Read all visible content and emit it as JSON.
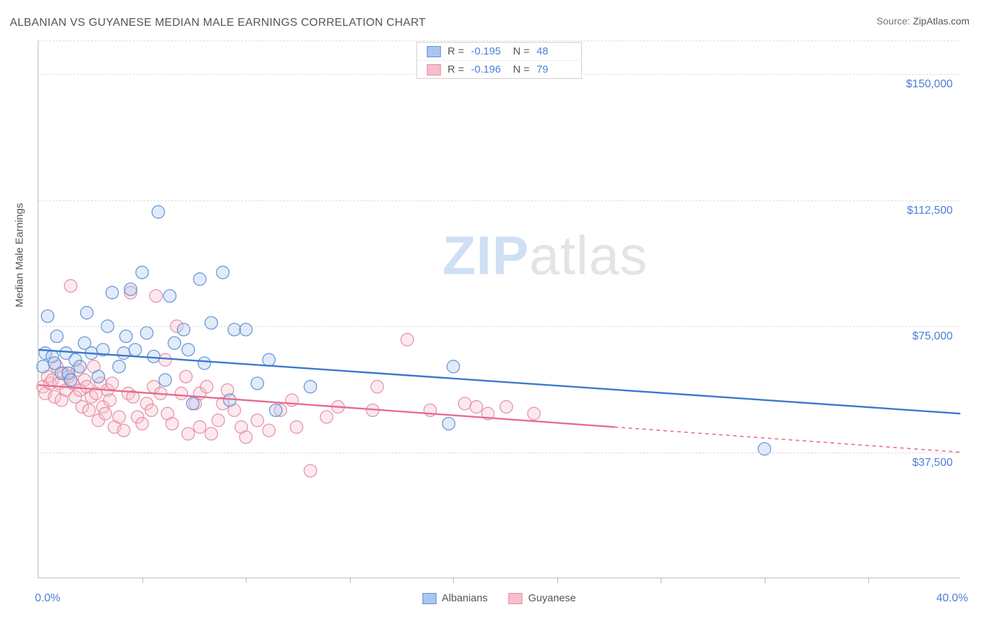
{
  "title": "ALBANIAN VS GUYANESE MEDIAN MALE EARNINGS CORRELATION CHART",
  "source": {
    "label": "Source:",
    "value": "ZipAtlas.com"
  },
  "watermark": {
    "part1": "ZIP",
    "part2": "atlas"
  },
  "y_axis": {
    "label": "Median Male Earnings"
  },
  "chart": {
    "type": "scatter",
    "xlim": [
      0,
      40
    ],
    "ylim": [
      0,
      160000
    ],
    "x_ticks_major": [
      0,
      40
    ],
    "x_ticks_minor": [
      4.5,
      9,
      13.5,
      18,
      22.5,
      27,
      31.5,
      36
    ],
    "x_tick_labels": {
      "0": "0.0%",
      "40": "40.0%"
    },
    "y_gridlines": [
      37500,
      75000,
      112500,
      150000,
      160000
    ],
    "y_tick_labels": {
      "37500": "$37,500",
      "75000": "$75,000",
      "112500": "$112,500",
      "150000": "$150,000"
    },
    "background_color": "#ffffff",
    "grid_color": "#dcdcdc",
    "axis_color": "#bbbbbb",
    "marker_radius": 9,
    "marker_fill_opacity": 0.35,
    "marker_stroke_opacity": 0.9,
    "trend_line_width": 2.4,
    "series": [
      {
        "name": "Albanians",
        "color_fill": "#a9c7ee",
        "color_stroke": "#5a8fd6",
        "trend_color": "#3b78cc",
        "r": "-0.195",
        "n": "48",
        "trend": {
          "x1": 0,
          "y1": 68000,
          "x2": 40,
          "y2": 49000,
          "solid_until": 40
        },
        "points": [
          [
            0.2,
            63000
          ],
          [
            0.3,
            67000
          ],
          [
            0.4,
            78000
          ],
          [
            0.6,
            66000
          ],
          [
            0.7,
            64000
          ],
          [
            0.8,
            72000
          ],
          [
            1.0,
            61000
          ],
          [
            1.2,
            67000
          ],
          [
            1.3,
            61000
          ],
          [
            1.4,
            59000
          ],
          [
            1.6,
            65000
          ],
          [
            1.8,
            63000
          ],
          [
            2.0,
            70000
          ],
          [
            2.1,
            79000
          ],
          [
            2.3,
            67000
          ],
          [
            2.6,
            60000
          ],
          [
            2.8,
            68000
          ],
          [
            3.0,
            75000
          ],
          [
            3.2,
            85000
          ],
          [
            3.5,
            63000
          ],
          [
            3.7,
            67000
          ],
          [
            3.8,
            72000
          ],
          [
            4.0,
            86000
          ],
          [
            4.2,
            68000
          ],
          [
            4.5,
            91000
          ],
          [
            4.7,
            73000
          ],
          [
            5.0,
            66000
          ],
          [
            5.2,
            109000
          ],
          [
            5.5,
            59000
          ],
          [
            5.7,
            84000
          ],
          [
            5.9,
            70000
          ],
          [
            6.3,
            74000
          ],
          [
            6.5,
            68000
          ],
          [
            6.7,
            52000
          ],
          [
            7.0,
            89000
          ],
          [
            7.2,
            64000
          ],
          [
            7.5,
            76000
          ],
          [
            8.0,
            91000
          ],
          [
            8.3,
            53000
          ],
          [
            8.5,
            74000
          ],
          [
            9.0,
            74000
          ],
          [
            9.5,
            58000
          ],
          [
            10.0,
            65000
          ],
          [
            10.3,
            50000
          ],
          [
            11.8,
            57000
          ],
          [
            17.8,
            46000
          ],
          [
            18.0,
            63000
          ],
          [
            31.5,
            38500
          ]
        ]
      },
      {
        "name": "Guyanese",
        "color_fill": "#f5bfcb",
        "color_stroke": "#e48aa3",
        "trend_color": "#e76b8f",
        "r": "-0.196",
        "n": "79",
        "trend": {
          "x1": 0,
          "y1": 57500,
          "x2": 40,
          "y2": 37500,
          "solid_until": 25
        },
        "points": [
          [
            0.2,
            57000
          ],
          [
            0.3,
            55000
          ],
          [
            0.4,
            60000
          ],
          [
            0.5,
            58000
          ],
          [
            0.6,
            59000
          ],
          [
            0.7,
            54000
          ],
          [
            0.8,
            63000
          ],
          [
            0.9,
            58000
          ],
          [
            1.0,
            53000
          ],
          [
            1.1,
            61000
          ],
          [
            1.2,
            56000
          ],
          [
            1.3,
            60000
          ],
          [
            1.4,
            87000
          ],
          [
            1.5,
            58000
          ],
          [
            1.6,
            54000
          ],
          [
            1.7,
            62000
          ],
          [
            1.8,
            56000
          ],
          [
            1.9,
            51000
          ],
          [
            2.0,
            59000
          ],
          [
            2.1,
            57000
          ],
          [
            2.2,
            50000
          ],
          [
            2.3,
            54000
          ],
          [
            2.4,
            63000
          ],
          [
            2.5,
            55000
          ],
          [
            2.6,
            47000
          ],
          [
            2.7,
            58000
          ],
          [
            2.8,
            51000
          ],
          [
            2.9,
            49000
          ],
          [
            3.0,
            56000
          ],
          [
            3.1,
            53000
          ],
          [
            3.2,
            58000
          ],
          [
            3.3,
            45000
          ],
          [
            3.5,
            48000
          ],
          [
            3.7,
            44000
          ],
          [
            3.9,
            55000
          ],
          [
            4.0,
            85000
          ],
          [
            4.1,
            54000
          ],
          [
            4.3,
            48000
          ],
          [
            4.5,
            46000
          ],
          [
            4.7,
            52000
          ],
          [
            4.9,
            50000
          ],
          [
            5.0,
            57000
          ],
          [
            5.1,
            84000
          ],
          [
            5.3,
            55000
          ],
          [
            5.5,
            65000
          ],
          [
            5.6,
            49000
          ],
          [
            5.8,
            46000
          ],
          [
            6.0,
            75000
          ],
          [
            6.2,
            55000
          ],
          [
            6.4,
            60000
          ],
          [
            6.5,
            43000
          ],
          [
            6.8,
            52000
          ],
          [
            7.0,
            45000
          ],
          [
            7.0,
            55000
          ],
          [
            7.3,
            57000
          ],
          [
            7.5,
            43000
          ],
          [
            7.8,
            47000
          ],
          [
            8.0,
            52000
          ],
          [
            8.2,
            56000
          ],
          [
            8.5,
            50000
          ],
          [
            8.8,
            45000
          ],
          [
            9.0,
            42000
          ],
          [
            9.5,
            47000
          ],
          [
            10.0,
            44000
          ],
          [
            10.5,
            50000
          ],
          [
            11.0,
            53000
          ],
          [
            11.2,
            45000
          ],
          [
            11.8,
            32000
          ],
          [
            12.5,
            48000
          ],
          [
            13.0,
            51000
          ],
          [
            14.5,
            50000
          ],
          [
            14.7,
            57000
          ],
          [
            16.0,
            71000
          ],
          [
            17.0,
            50000
          ],
          [
            18.5,
            52000
          ],
          [
            19.0,
            51000
          ],
          [
            19.5,
            49000
          ],
          [
            20.3,
            51000
          ],
          [
            21.5,
            49000
          ]
        ]
      }
    ]
  },
  "legend_top_labels": {
    "r": "R =",
    "n": "N ="
  },
  "legend_bottom": [
    {
      "label": "Albanians",
      "fill": "#a9c7ee",
      "stroke": "#5a8fd6"
    },
    {
      "label": "Guyanese",
      "fill": "#f5bfcb",
      "stroke": "#e48aa3"
    }
  ]
}
